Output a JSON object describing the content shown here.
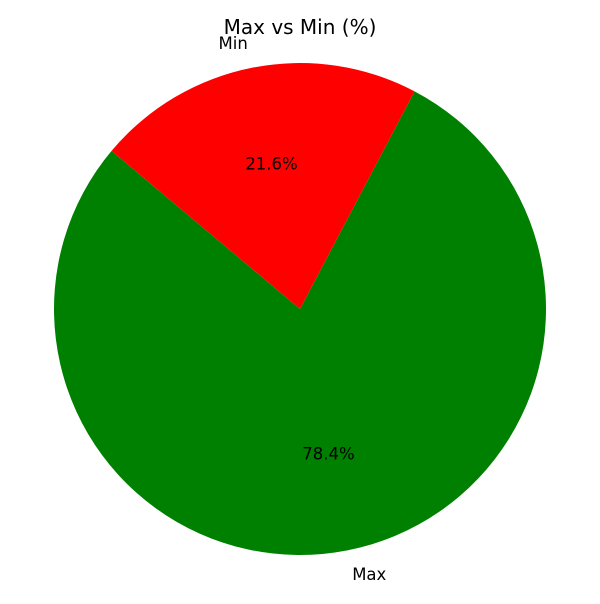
{
  "chart_data": {
    "type": "pie",
    "title": "Max vs Min (%)",
    "slices": [
      {
        "label": "Max",
        "value": 78.4,
        "pct_label": "78.4%",
        "color": "#008000"
      },
      {
        "label": "Min",
        "value": 21.6,
        "pct_label": "21.6%",
        "color": "#ff0000"
      }
    ],
    "start_angle_deg": 140,
    "direction": "counterclockwise"
  }
}
